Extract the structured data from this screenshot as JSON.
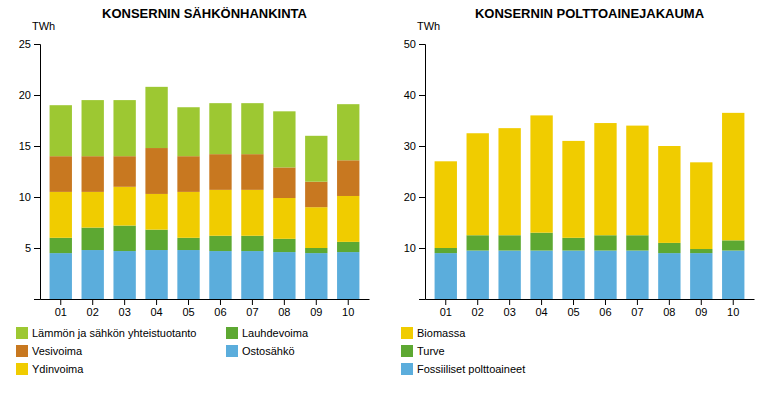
{
  "chart_data": [
    {
      "type": "bar",
      "stacked": true,
      "title": "KONSERNIN SÄHKÖNHANKINTA",
      "ylabel": "TWh",
      "categories": [
        "01",
        "02",
        "03",
        "04",
        "05",
        "06",
        "07",
        "08",
        "09",
        "10"
      ],
      "series": [
        {
          "name": "Ostosähkö",
          "color": "#5baddc",
          "values": [
            4.5,
            4.8,
            4.7,
            4.8,
            4.8,
            4.7,
            4.7,
            4.6,
            4.5,
            4.6
          ]
        },
        {
          "name": "Lauhdevoima",
          "color": "#5da832",
          "values": [
            1.5,
            2.2,
            2.5,
            2.0,
            1.2,
            1.5,
            1.5,
            1.3,
            0.5,
            1.0
          ]
        },
        {
          "name": "Ydinvoima",
          "color": "#f0cc00",
          "values": [
            4.5,
            3.5,
            3.8,
            3.5,
            4.5,
            4.5,
            4.5,
            4.0,
            4.0,
            4.5
          ]
        },
        {
          "name": "Vesivoima",
          "color": "#c87820",
          "values": [
            3.5,
            3.5,
            3.0,
            4.5,
            3.5,
            3.5,
            3.5,
            3.0,
            2.5,
            3.5
          ]
        },
        {
          "name": "Lämmön ja sähkön yhteistuotanto",
          "color": "#9dc832",
          "values": [
            5.0,
            5.5,
            5.5,
            6.0,
            4.8,
            5.0,
            5.0,
            5.5,
            4.5,
            5.5
          ]
        }
      ],
      "ylim": [
        0,
        25
      ],
      "yticks": [
        5,
        10,
        15,
        20,
        25
      ],
      "grid": false,
      "legend": "bottom"
    },
    {
      "type": "bar",
      "stacked": true,
      "title": "KONSERNIN POLTTOAINEJAKAUMA",
      "ylabel": "TWh",
      "categories": [
        "01",
        "02",
        "03",
        "04",
        "05",
        "06",
        "07",
        "08",
        "09",
        "10"
      ],
      "series": [
        {
          "name": "Fossiiliset polttoaineet",
          "color": "#5baddc",
          "values": [
            9.0,
            9.5,
            9.5,
            9.5,
            9.5,
            9.5,
            9.5,
            9.0,
            9.0,
            9.5
          ]
        },
        {
          "name": "Turve",
          "color": "#5da832",
          "values": [
            1.0,
            3.0,
            3.0,
            3.5,
            2.5,
            3.0,
            3.0,
            2.0,
            0.8,
            2.0
          ]
        },
        {
          "name": "Biomassa",
          "color": "#f0cc00",
          "values": [
            17.0,
            20.0,
            21.0,
            23.0,
            19.0,
            22.0,
            21.5,
            19.0,
            17.0,
            25.0
          ]
        }
      ],
      "ylim": [
        0,
        50
      ],
      "yticks": [
        10,
        20,
        30,
        40,
        50
      ],
      "grid": false,
      "legend": "bottom"
    }
  ]
}
